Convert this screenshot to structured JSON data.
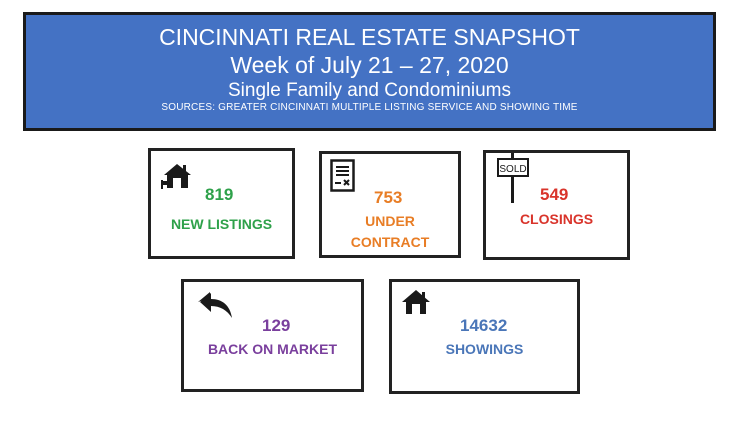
{
  "header": {
    "title": "CINCINNATI REAL ESTATE SNAPSHOT",
    "week": "Week of July 21 – 27, 2020",
    "subtitle": "Single Family and Condominiums",
    "sources": "SOURCES:  GREATER CINCINNATI MULTIPLE LISTING SERVICE AND SHOWING TIME"
  },
  "colors": {
    "banner": "#4472c4",
    "new_listings": "#2ea14a",
    "under_contract": "#e87d25",
    "closings": "#d9342b",
    "back_on_market": "#7a3f9d",
    "showings": "#4a76b8"
  },
  "cards": {
    "new_listings": {
      "value": "819",
      "label": "NEW LISTINGS",
      "icon": "house-for-sale-icon"
    },
    "under_contract": {
      "value": "753",
      "label_line1": "UNDER",
      "label_line2": "CONTRACT",
      "icon": "contract-document-icon"
    },
    "closings": {
      "value": "549",
      "label": "CLOSINGS",
      "sign_text": "SOLD",
      "icon": "sold-sign-icon"
    },
    "back_on_market": {
      "value": "129",
      "label": "BACK ON MARKET",
      "icon": "back-arrow-icon"
    },
    "showings": {
      "value": "14632",
      "label": "SHOWINGS",
      "icon": "house-icon"
    }
  }
}
